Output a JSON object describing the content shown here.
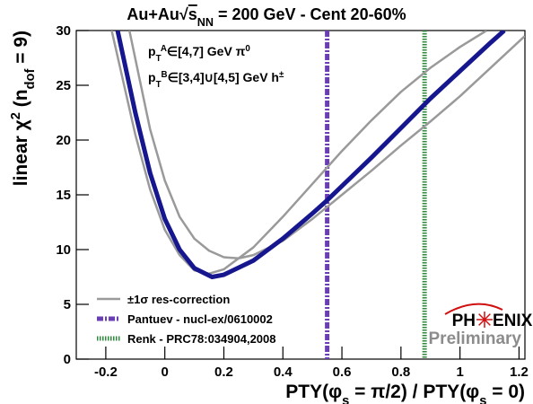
{
  "chart_data": {
    "type": "line",
    "title": [
      {
        "t": "Au+Au"
      },
      {
        "t": "√"
      },
      {
        "t": "s",
        "s": "over"
      },
      {
        "t": "NN",
        "s": "sub"
      },
      {
        "t": " = 200 GeV - Cent 20-60%"
      }
    ],
    "y_label": [
      {
        "t": "linear χ"
      },
      {
        "t": "2",
        "s": "sup"
      },
      {
        "t": " (n"
      },
      {
        "t": "dof",
        "s": "sub"
      },
      {
        "t": " = 9)"
      }
    ],
    "x_label": [
      {
        "t": "PTY(φ"
      },
      {
        "t": "s",
        "s": "sub"
      },
      {
        "t": " = π/2) / PTY(φ"
      },
      {
        "t": "s",
        "s": "sub"
      },
      {
        "t": " = 0)"
      }
    ],
    "annotations": [
      [
        {
          "t": "p"
        },
        {
          "t": "T",
          "s": "sub"
        },
        {
          "t": "A",
          "s": "sup"
        },
        {
          "t": "∈[4,7] GeV π"
        },
        {
          "t": "0",
          "s": "sup"
        }
      ],
      [
        {
          "t": "p"
        },
        {
          "t": "T",
          "s": "sub"
        },
        {
          "t": "B",
          "s": "sup"
        },
        {
          "t": "∈[3,4]∪[4,5] GeV h"
        },
        {
          "t": "±",
          "s": "sup"
        }
      ]
    ],
    "logo": {
      "left": "PH",
      "right": "ENIX",
      "note": "Preliminary"
    },
    "xlim": [
      -0.3,
      1.22
    ],
    "ylim": [
      0,
      30
    ],
    "xticks": [
      -0.2,
      0,
      0.2,
      0.4,
      0.6,
      0.8,
      1,
      1.2
    ],
    "yticks": [
      0,
      5,
      10,
      15,
      20,
      25,
      30
    ],
    "legend": "lower left",
    "series": [
      {
        "name": "±1σ res-correction",
        "color": "#9a9a9a",
        "width": 2.5,
        "x": [
          -0.18,
          -0.1,
          -0.05,
          0,
          0.05,
          0.1,
          0.15,
          0.2,
          0.3,
          0.4,
          0.5,
          0.55,
          0.6,
          0.7,
          0.8,
          0.9,
          1.0,
          1.09,
          null,
          -0.12,
          -0.05,
          0,
          0.05,
          0.1,
          0.15,
          0.2,
          0.25,
          0.3,
          0.4,
          0.5,
          0.55,
          0.6,
          0.7,
          0.8,
          0.9,
          1.0,
          1.1,
          1.22
        ],
        "values": [
          30,
          20.5,
          15.5,
          11.8,
          9.5,
          8.1,
          7.8,
          8.2,
          10.2,
          13,
          16,
          17.5,
          19,
          21.8,
          24.4,
          26.6,
          28.5,
          30,
          null,
          30,
          21,
          16.3,
          13,
          11,
          9.9,
          9.3,
          9.2,
          9.5,
          10.8,
          12.8,
          13.9,
          15,
          17.2,
          19.5,
          21.7,
          24,
          26.5,
          29.5
        ]
      },
      {
        "color": "#16168f",
        "width": 5,
        "x": [
          -0.16,
          -0.1,
          -0.05,
          0,
          0.05,
          0.1,
          0.16,
          0.2,
          0.3,
          0.4,
          0.5,
          0.55,
          0.6,
          0.7,
          0.8,
          0.9,
          1.0,
          1.1,
          1.15
        ],
        "values": [
          30,
          22.5,
          17,
          12.8,
          10,
          8.3,
          7.5,
          7.7,
          9,
          11,
          13.3,
          14.5,
          15.8,
          18.4,
          21.1,
          23.8,
          26.3,
          28.8,
          30
        ]
      }
    ],
    "reference_lines": [
      {
        "name": "Pantuev - nucl-ex/0610002",
        "x": 0.55,
        "color": "#6a3fb5",
        "dash": "7 2 2 2"
      },
      {
        "name": "Renk - PRC78:034904,2008",
        "x": 0.88,
        "color": "#2e8b3e",
        "dash": "1.5 1.5"
      }
    ]
  }
}
